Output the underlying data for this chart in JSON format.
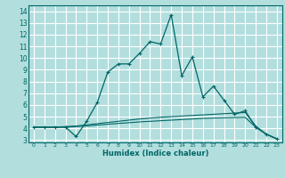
{
  "title": "",
  "xlabel": "Humidex (Indice chaleur)",
  "background_color": "#b2dede",
  "grid_color": "#ffffff",
  "line_color": "#006666",
  "xlim": [
    -0.5,
    23.5
  ],
  "ylim": [
    2.8,
    14.5
  ],
  "xticks": [
    0,
    1,
    2,
    3,
    4,
    5,
    6,
    7,
    8,
    9,
    10,
    11,
    12,
    13,
    14,
    15,
    16,
    17,
    18,
    19,
    20,
    21,
    22,
    23
  ],
  "yticks": [
    3,
    4,
    5,
    6,
    7,
    8,
    9,
    10,
    11,
    12,
    13,
    14
  ],
  "line1_x": [
    0,
    1,
    2,
    3,
    4,
    5,
    6,
    7,
    8,
    9,
    10,
    11,
    12,
    13,
    14,
    15,
    16,
    17,
    18,
    19,
    20,
    21,
    22,
    23
  ],
  "line1_y": [
    4.1,
    4.1,
    4.1,
    4.1,
    3.3,
    4.6,
    6.2,
    8.8,
    9.5,
    9.5,
    10.4,
    11.4,
    11.2,
    13.7,
    8.5,
    10.1,
    6.7,
    7.6,
    6.4,
    5.2,
    5.5,
    4.1,
    3.5,
    3.1
  ],
  "line2_x": [
    0,
    1,
    2,
    3,
    4,
    5,
    6,
    7,
    8,
    9,
    10,
    11,
    12,
    13,
    14,
    15,
    16,
    17,
    18,
    19,
    20,
    21,
    22,
    23
  ],
  "line2_y": [
    4.1,
    4.1,
    4.1,
    4.15,
    4.2,
    4.3,
    4.4,
    4.5,
    4.6,
    4.7,
    4.8,
    4.88,
    4.95,
    5.0,
    5.05,
    5.1,
    5.15,
    5.2,
    5.25,
    5.3,
    5.35,
    4.2,
    3.5,
    3.1
  ],
  "line3_x": [
    0,
    1,
    2,
    3,
    4,
    5,
    6,
    7,
    8,
    9,
    10,
    11,
    12,
    13,
    14,
    15,
    16,
    17,
    18,
    19,
    20,
    21,
    22,
    23
  ],
  "line3_y": [
    4.1,
    4.1,
    4.1,
    4.1,
    4.15,
    4.2,
    4.28,
    4.35,
    4.42,
    4.48,
    4.55,
    4.6,
    4.65,
    4.7,
    4.75,
    4.8,
    4.85,
    4.88,
    4.9,
    4.92,
    4.94,
    4.1,
    3.5,
    3.1
  ]
}
